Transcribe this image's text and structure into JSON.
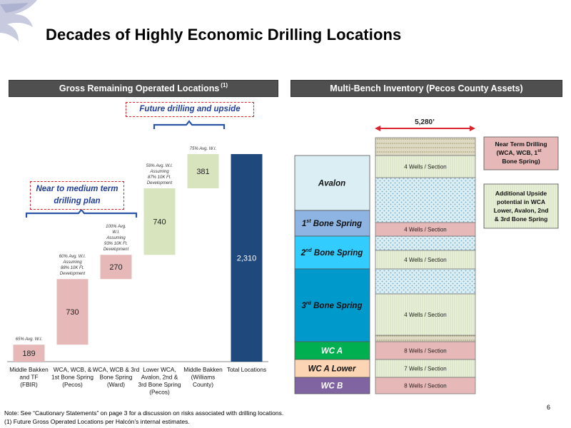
{
  "page": {
    "title": "Decades of Highly Economic Drilling Locations",
    "page_number": "6"
  },
  "headers": {
    "left": "Gross Remaining Operated Locations",
    "left_sup": "(1)",
    "right": "Multi-Bench Inventory (Pecos County Assets)"
  },
  "callouts": {
    "future": "Future drilling and upside",
    "near_medium": "Near to medium term drilling plan"
  },
  "chart_data": {
    "type": "bar",
    "variant": "waterfall",
    "categories": [
      "Middle Bakken and TF (FBIR)",
      "WCA, WCB, & 1st Bone Spring (Pecos)",
      "WCA, WCB & 3rd Bone Spring (Ward)",
      "Lower WCA, Avalon, 2nd & 3rd Bone Spring (Pecos)",
      "Middle Bakken (Williams County)",
      "Total Locations"
    ],
    "values": [
      189,
      730,
      270,
      740,
      381,
      2310
    ],
    "total_index": 5,
    "annotations": [
      "65% Avg. W.I.",
      "60% Avg. W.I. Assuming 88% 10K Ft. Development",
      "100% Avg. W.I. Assuming 93% 10K Ft. Development",
      "59% Avg. W.I. Assuming 87% 10K Ft. Development",
      "75% Avg. W.I.",
      ""
    ],
    "colors": [
      "#e6b9b8",
      "#e6b9b8",
      "#e6b9b8",
      "#d7e4bd",
      "#d7e4bd",
      "#1f497d"
    ],
    "ylim": [
      0,
      2310
    ],
    "grid": false,
    "legend": "none"
  },
  "bench": {
    "width_label": "5,280’",
    "layers": [
      {
        "name": "Avalon",
        "sup": "",
        "rest": "",
        "color": "#dbeef4"
      },
      {
        "name": "1",
        "sup": "st",
        "rest": " Bone Spring",
        "color": "#8db4e2"
      },
      {
        "name": "2",
        "sup": "nd",
        "rest": " Bone Spring",
        "color": "#33ccff"
      },
      {
        "name": "3",
        "sup": "rd",
        "rest": " Bone Spring",
        "color": "#0099cc"
      },
      {
        "name": "WC A",
        "sup": "",
        "rest": "",
        "color": "#00b050"
      },
      {
        "name": "WC A Lower",
        "sup": "",
        "rest": "",
        "color": "#fcd5b4"
      },
      {
        "name": "WC B",
        "sup": "",
        "rest": "",
        "color": "#8064a2"
      }
    ],
    "wells": [
      {
        "label": "4 Wells / Section",
        "kind": "upside"
      },
      {
        "label": "4 Wells / Section",
        "kind": "near"
      },
      {
        "label": "4 Wells / Section",
        "kind": "upside"
      },
      {
        "label": "4 Wells / Section",
        "kind": "upside"
      },
      {
        "label": "8 Wells / Section",
        "kind": "near"
      },
      {
        "label": "7 Wells / Section",
        "kind": "upside"
      },
      {
        "label": "8 Wells / Section",
        "kind": "near"
      }
    ],
    "legend": {
      "near_line1": "Near Term Drilling",
      "near_line2": "(WCA, WCB, 1",
      "near_sup": "st",
      "near_line3": "Bone Spring)",
      "upside_lines": [
        "Additional Upside",
        "potential in WCA",
        "Lower, Avalon, 2nd",
        "& 3rd Bone Spring"
      ]
    },
    "colors": {
      "near": "#e6b9b8",
      "upside": "#ebf1de",
      "hatch": "#dbeef4"
    }
  },
  "notes": {
    "line1": "Note: See “Cautionary Statements” on page 3 for a discussion on risks associated with drilling locations.",
    "line2": "(1) Future Gross Operated Locations per Halcón’s internal estimates."
  }
}
